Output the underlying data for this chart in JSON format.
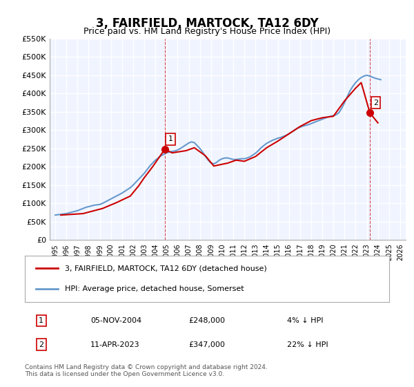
{
  "title": "3, FAIRFIELD, MARTOCK, TA12 6DY",
  "subtitle": "Price paid vs. HM Land Registry's House Price Index (HPI)",
  "title_fontsize": 12,
  "subtitle_fontsize": 10,
  "ylabel": "",
  "xlabel": "",
  "ylim": [
    0,
    550000
  ],
  "yticks": [
    0,
    50000,
    100000,
    150000,
    200000,
    250000,
    300000,
    350000,
    400000,
    450000,
    500000,
    550000
  ],
  "ytick_labels": [
    "£0",
    "£50K",
    "£100K",
    "£150K",
    "£200K",
    "£250K",
    "£300K",
    "£350K",
    "£400K",
    "£450K",
    "£500K",
    "£550K"
  ],
  "xlim_start": 1994.5,
  "xlim_end": 2026.5,
  "background_color": "#ffffff",
  "plot_bg_color": "#f0f4ff",
  "grid_color": "#ffffff",
  "hpi_color": "#6699cc",
  "price_color": "#cc0000",
  "marker_color_1": "#cc0000",
  "marker_color_2": "#cc0000",
  "point1_x": 2004.85,
  "point1_y": 248000,
  "point2_x": 2023.28,
  "point2_y": 347000,
  "annotation1_label": "1",
  "annotation2_label": "2",
  "legend_line1": "3, FAIRFIELD, MARTOCK, TA12 6DY (detached house)",
  "legend_line2": "HPI: Average price, detached house, Somerset",
  "table_row1_num": "1",
  "table_row1_date": "05-NOV-2004",
  "table_row1_price": "£248,000",
  "table_row1_hpi": "4% ↓ HPI",
  "table_row2_num": "2",
  "table_row2_date": "11-APR-2023",
  "table_row2_price": "£347,000",
  "table_row2_hpi": "22% ↓ HPI",
  "footer": "Contains HM Land Registry data © Crown copyright and database right 2024.\nThis data is licensed under the Open Government Licence v3.0.",
  "hpi_x": [
    1995,
    1995.25,
    1995.5,
    1995.75,
    1996,
    1996.25,
    1996.5,
    1996.75,
    1997,
    1997.25,
    1997.5,
    1997.75,
    1998,
    1998.25,
    1998.5,
    1998.75,
    1999,
    1999.25,
    1999.5,
    1999.75,
    2000,
    2000.25,
    2000.5,
    2000.75,
    2001,
    2001.25,
    2001.5,
    2001.75,
    2002,
    2002.25,
    2002.5,
    2002.75,
    2003,
    2003.25,
    2003.5,
    2003.75,
    2004,
    2004.25,
    2004.5,
    2004.75,
    2005,
    2005.25,
    2005.5,
    2005.75,
    2006,
    2006.25,
    2006.5,
    2006.75,
    2007,
    2007.25,
    2007.5,
    2007.75,
    2008,
    2008.25,
    2008.5,
    2008.75,
    2009,
    2009.25,
    2009.5,
    2009.75,
    2010,
    2010.25,
    2010.5,
    2010.75,
    2011,
    2011.25,
    2011.5,
    2011.75,
    2012,
    2012.25,
    2012.5,
    2012.75,
    2013,
    2013.25,
    2013.5,
    2013.75,
    2014,
    2014.25,
    2014.5,
    2014.75,
    2015,
    2015.25,
    2015.5,
    2015.75,
    2016,
    2016.25,
    2016.5,
    2016.75,
    2017,
    2017.25,
    2017.5,
    2017.75,
    2018,
    2018.25,
    2018.5,
    2018.75,
    2019,
    2019.25,
    2019.5,
    2019.75,
    2020,
    2020.25,
    2020.5,
    2020.75,
    2021,
    2021.25,
    2021.5,
    2021.75,
    2022,
    2022.25,
    2022.5,
    2022.75,
    2023,
    2023.25,
    2023.5,
    2023.75,
    2024,
    2024.25
  ],
  "hpi_y": [
    68000,
    69000,
    70000,
    71000,
    72000,
    74000,
    76000,
    78000,
    80000,
    83000,
    86000,
    89000,
    91000,
    93000,
    95000,
    96000,
    97000,
    100000,
    104000,
    108000,
    112000,
    116000,
    120000,
    124000,
    128000,
    133000,
    138000,
    143000,
    150000,
    158000,
    166000,
    174000,
    182000,
    192000,
    202000,
    210000,
    218000,
    224000,
    230000,
    234000,
    238000,
    240000,
    242000,
    243000,
    246000,
    250000,
    255000,
    260000,
    265000,
    268000,
    266000,
    258000,
    250000,
    240000,
    228000,
    218000,
    210000,
    208000,
    212000,
    218000,
    222000,
    224000,
    224000,
    222000,
    220000,
    220000,
    221000,
    222000,
    222000,
    224000,
    227000,
    232000,
    237000,
    244000,
    252000,
    258000,
    264000,
    268000,
    272000,
    275000,
    278000,
    280000,
    283000,
    286000,
    290000,
    295000,
    300000,
    305000,
    308000,
    311000,
    313000,
    315000,
    318000,
    321000,
    324000,
    327000,
    330000,
    333000,
    336000,
    338000,
    340000,
    342000,
    348000,
    360000,
    375000,
    392000,
    408000,
    420000,
    430000,
    438000,
    444000,
    448000,
    450000,
    448000,
    445000,
    442000,
    440000,
    438000
  ],
  "price_x": [
    1995.5,
    1996.5,
    1997.5,
    1998.25,
    1999.25,
    2000.5,
    2001.75,
    2002.5,
    2003.0,
    2003.75,
    2004.85,
    2005.5,
    2006.75,
    2007.5,
    2008.5,
    2009.25,
    2010.5,
    2011.25,
    2012.0,
    2013.0,
    2014.0,
    2015.0,
    2016.0,
    2017.0,
    2018.0,
    2019.0,
    2020.0,
    2021.0,
    2022.0,
    2022.5,
    2023.28,
    2024.0
  ],
  "price_y": [
    68000,
    70000,
    72000,
    78000,
    86000,
    102000,
    120000,
    148000,
    170000,
    200000,
    248000,
    238000,
    244000,
    252000,
    230000,
    202000,
    210000,
    218000,
    215000,
    228000,
    252000,
    270000,
    290000,
    310000,
    326000,
    334000,
    338000,
    380000,
    415000,
    430000,
    347000,
    320000
  ]
}
